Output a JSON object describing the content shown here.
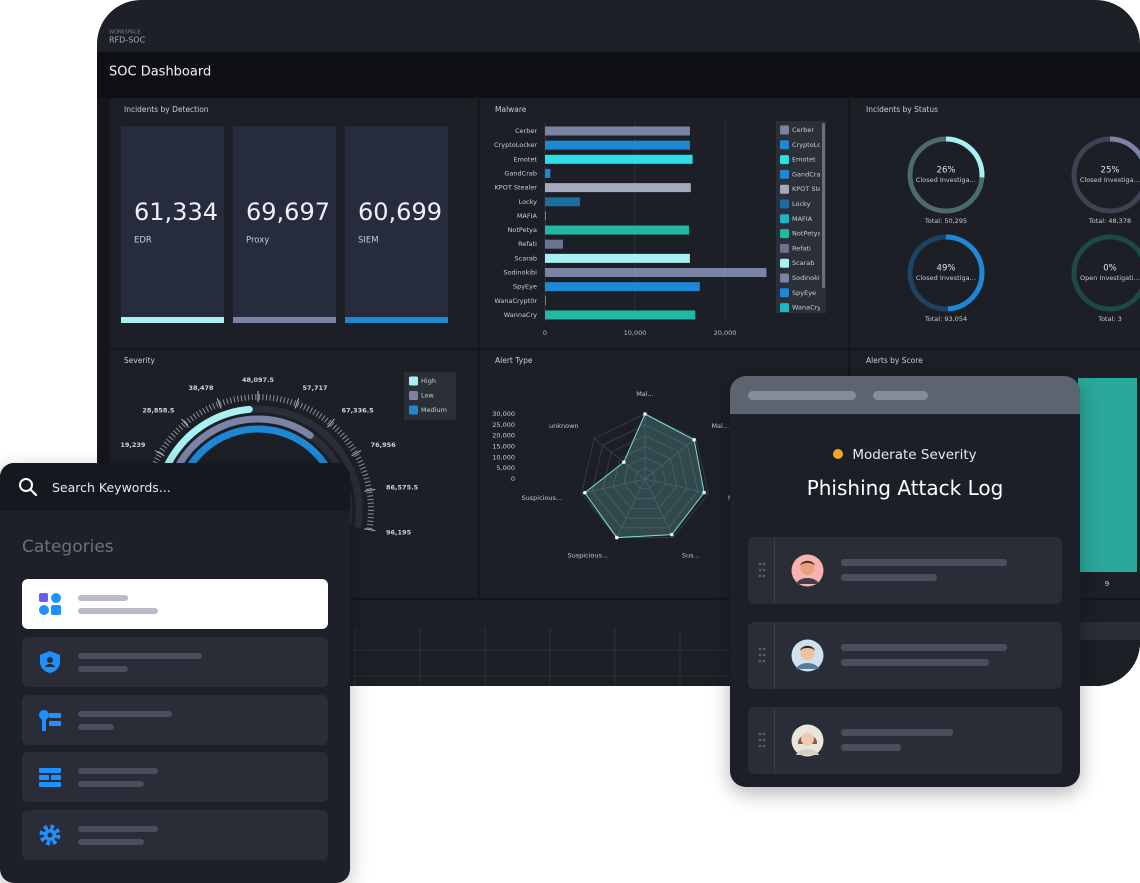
{
  "workspace": {
    "label": "WORKSPACE",
    "name": "RFD-SOC"
  },
  "dashboard_title": "SOC Dashboard",
  "detection": {
    "title": "Incidents by Detection",
    "cards": [
      {
        "value": "61,334",
        "label": "EDR",
        "color": "#a8f0f3"
      },
      {
        "value": "69,697",
        "label": "Proxy",
        "color": "#7b84a6"
      },
      {
        "value": "60,699",
        "label": "SIEM",
        "color": "#1e88d4"
      }
    ]
  },
  "chart_data": [
    {
      "type": "barh",
      "title": "Malware",
      "categories": [
        "Cerber",
        "CryptoLocker",
        "Emotet",
        "GandCrab",
        "KPOT Stealer",
        "Locky",
        "MAFIA",
        "NotPetya",
        "Refati",
        "Scarab",
        "Sodinokibi",
        "SpyEye",
        "WanaCrypt0r",
        "WannaCry"
      ],
      "values": [
        16100,
        16100,
        16400,
        600,
        16200,
        3900,
        100,
        16000,
        2000,
        16100,
        24600,
        17200,
        100,
        16700
      ],
      "colors": [
        "#7b84a6",
        "#1e88d4",
        "#2de0e8",
        "#1e88d4",
        "#a4aabd",
        "#1a6fa0",
        "#1fb5c9",
        "#23b8a6",
        "#6a7290",
        "#a8f0f3",
        "#7b84a6",
        "#1e88d4",
        "#1fb5c9",
        "#23b8a6"
      ],
      "xlim": [
        0,
        25000
      ],
      "xticks": [
        0,
        {
          "value": 10000,
          "label": "10,000"
        },
        {
          "value": 20000,
          "label": "20,000"
        }
      ]
    },
    {
      "type": "donut",
      "title": "Incidents by Status",
      "categories": [
        "Closed Investiga…",
        "Closed Investiga…",
        "Closed Investiga…",
        "Open Investigati…"
      ],
      "values": [
        26,
        25,
        49,
        0
      ],
      "value_labels": [
        "26%",
        "25%",
        "49%",
        "0%"
      ],
      "totals": [
        "Total: 50,295",
        "Total: 48,378",
        "Total: 93,054",
        "Total: 3"
      ],
      "colors": [
        "#a8f0f3",
        "#7b84a6",
        "#1e88d4",
        "#23b8a6"
      ],
      "track_colors": [
        "#4d6a6c",
        "#3d4352",
        "#1f4463",
        "#1d4a46"
      ]
    },
    {
      "type": "radial_bar",
      "title": "Severity",
      "series": [
        {
          "name": "High",
          "color": "#a8f0f3",
          "values": [
            45700
          ]
        },
        {
          "name": "Low",
          "color": "#7b84a6",
          "values": [
            64900
          ]
        },
        {
          "name": "Medium",
          "color": "#1e88d4",
          "values": [
            81800
          ]
        }
      ],
      "ylim": [
        0,
        96195
      ],
      "yticks": [
        {
          "value": 19239,
          "label": "19,239"
        },
        {
          "value": 28858.5,
          "label": "28,858.5"
        },
        {
          "value": 38478,
          "label": "38,478"
        },
        {
          "value": 48097.5,
          "label": "48,097.5"
        },
        {
          "value": 57717,
          "label": "57,717"
        },
        {
          "value": 67336.5,
          "label": "67,336.5"
        },
        {
          "value": 76956,
          "label": "76,956"
        },
        {
          "value": 86575.5,
          "label": "86,575.5"
        },
        {
          "value": 96195,
          "label": "96,195"
        }
      ]
    },
    {
      "type": "radar",
      "title": "Alert Type",
      "categories": [
        "Mal...",
        "Mal...",
        "Mal...",
        "Sus...",
        "Suspicious...",
        "Suspicious...",
        "unknown"
      ],
      "values": [
        30000,
        29000,
        28000,
        28500,
        30000,
        28500,
        12500
      ],
      "color": "#7fe0d6",
      "ylim": [
        0,
        30000
      ],
      "yticks": [
        0,
        {
          "value": 5000,
          "label": "5,000"
        },
        {
          "value": 10000,
          "label": "10,000"
        },
        {
          "value": 15000,
          "label": "15,000"
        },
        {
          "value": 20000,
          "label": "20,000"
        },
        {
          "value": 25000,
          "label": "25,000"
        },
        {
          "value": 30000,
          "label": "30,000"
        }
      ]
    }
  ],
  "alerts_by_score": {
    "title": "Alerts by Score",
    "label": "9"
  },
  "search": {
    "placeholder": "Search Keywords...",
    "heading": "Categories"
  },
  "incident_card": {
    "severity": "Moderate Severity",
    "title": "Phishing Attack Log"
  }
}
